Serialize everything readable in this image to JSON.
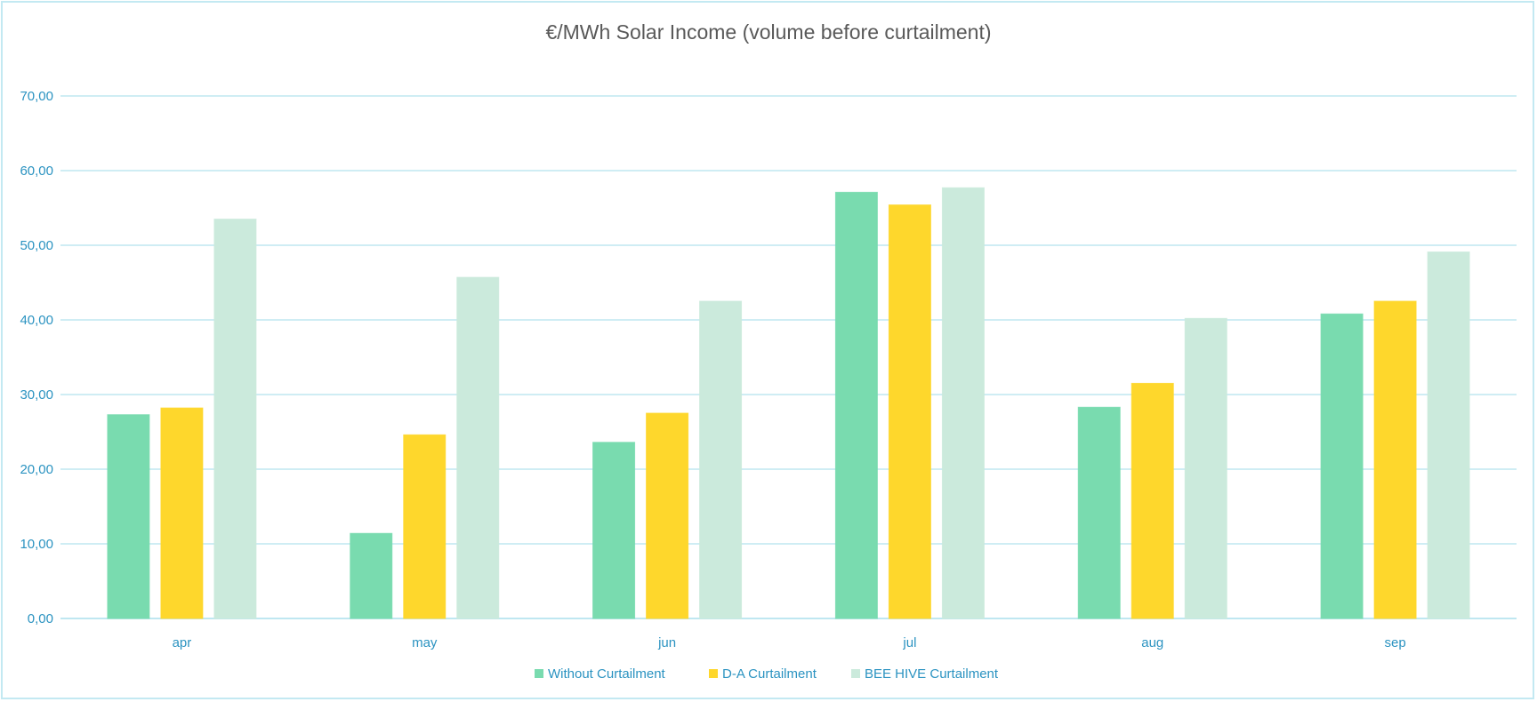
{
  "chart_data": {
    "type": "bar",
    "title": "€/MWh Solar Income (volume before curtailment)",
    "xlabel": "",
    "ylabel": "",
    "ylim": [
      0,
      70
    ],
    "ytick_step": 10,
    "ytick_labels": [
      "0,00",
      "10,00",
      "20,00",
      "30,00",
      "40,00",
      "50,00",
      "60,00",
      "70,00"
    ],
    "grid": true,
    "legend_position": "bottom",
    "categories": [
      "apr",
      "may",
      "jun",
      "jul",
      "aug",
      "sep"
    ],
    "series": [
      {
        "name": "Without Curtailment",
        "color": "#79DBAF",
        "values": [
          27.3,
          11.4,
          23.6,
          57.1,
          28.3,
          40.8
        ]
      },
      {
        "name": "D-A Curtailment",
        "color": "#FED72C",
        "values": [
          28.2,
          24.6,
          27.5,
          55.4,
          31.5,
          42.5
        ]
      },
      {
        "name": "BEE HIVE Curtailment",
        "color": "#CBEADC",
        "values": [
          53.5,
          45.7,
          42.5,
          57.7,
          40.2,
          49.1
        ]
      }
    ]
  },
  "colors": {
    "axis_text": "#2b93c1",
    "grid": "#bfe7f1",
    "border": "#c3e9f2"
  }
}
